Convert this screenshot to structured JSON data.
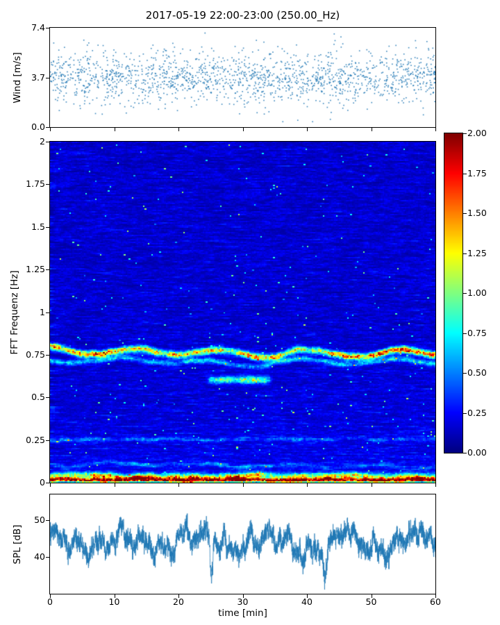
{
  "title": "2017-05-19 22:00-23:00 (250.00_Hz)",
  "seed": 20170519,
  "colors": {
    "series": "#1f77b4",
    "spine": "#000000",
    "background": "#ffffff"
  },
  "axes": {
    "time": {
      "label": "time [min]",
      "range": [
        0,
        60
      ],
      "ticks": [
        {
          "v": 0,
          "label": "0"
        },
        {
          "v": 10,
          "label": "10"
        },
        {
          "v": 20,
          "label": "20"
        },
        {
          "v": 30,
          "label": "30"
        },
        {
          "v": 40,
          "label": "40"
        },
        {
          "v": 50,
          "label": "50"
        },
        {
          "v": 60,
          "label": "60"
        }
      ]
    },
    "wind": {
      "label": "Wind [m/s]",
      "ylim": [
        0,
        7.4
      ],
      "yticks": [
        {
          "v": 0,
          "label": "0.0"
        },
        {
          "v": 3.7,
          "label": "3.7"
        },
        {
          "v": 7.4,
          "label": "7.4"
        }
      ]
    },
    "fft": {
      "label": "FFT Frequenz [Hz]",
      "ylim": [
        0,
        2
      ],
      "yticks": [
        {
          "v": 0,
          "label": "0"
        },
        {
          "v": 0.25,
          "label": "0.25"
        },
        {
          "v": 0.5,
          "label": "0.5"
        },
        {
          "v": 0.75,
          "label": "0.75"
        },
        {
          "v": 1,
          "label": "1"
        },
        {
          "v": 1.25,
          "label": "1.25"
        },
        {
          "v": 1.5,
          "label": "1.5"
        },
        {
          "v": 1.75,
          "label": "1.75"
        },
        {
          "v": 2,
          "label": "2"
        }
      ]
    },
    "spl": {
      "label": "SPL [dB]",
      "ylim": [
        30,
        57
      ],
      "yticks": [
        {
          "v": 40,
          "label": "40"
        },
        {
          "v": 50,
          "label": "50"
        }
      ]
    },
    "colorbar": {
      "range": [
        0,
        2
      ],
      "ticks": [
        {
          "v": 0,
          "label": "0.00"
        },
        {
          "v": 0.25,
          "label": "0.25"
        },
        {
          "v": 0.5,
          "label": "0.50"
        },
        {
          "v": 0.75,
          "label": "0.75"
        },
        {
          "v": 1,
          "label": "1.00"
        },
        {
          "v": 1.25,
          "label": "1.25"
        },
        {
          "v": 1.5,
          "label": "1.50"
        },
        {
          "v": 1.75,
          "label": "1.75"
        },
        {
          "v": 2,
          "label": "2.00"
        }
      ]
    }
  },
  "chart_data": [
    {
      "type": "scatter",
      "name": "wind",
      "ylabel": "Wind [m/s]",
      "x_range": [
        0,
        60
      ],
      "ylim": [
        0,
        7.4
      ],
      "n_points": 1700,
      "mean": 3.7,
      "std": 0.95,
      "min": 0.4,
      "max": 7.35,
      "marker_color": "#1f77b4",
      "description": "dense noisy wind-speed scatter centered near 3.7 m/s, spanning roughly 0.5-7.3 m/s over 0-60 min"
    },
    {
      "type": "heatmap",
      "name": "spectrogram",
      "ylabel": "FFT Frequenz [Hz]",
      "x_range": [
        0,
        60
      ],
      "y_range": [
        0,
        2
      ],
      "value_range": [
        0,
        2
      ],
      "colormap": "jet",
      "background_level": 0.15,
      "bands": [
        {
          "center": 0.78,
          "wobble": 0.03,
          "amp": 1.25,
          "amp_var": 0.55,
          "sigma": 0.013,
          "description": "dominant narrowband tone, green-yellow with red bursts, wanders 0.75-0.83 Hz"
        },
        {
          "center": 0.71,
          "wobble": 0.02,
          "amp": 0.45,
          "amp_var": 0.25,
          "sigma": 0.011,
          "description": "weaker secondary tone just below main band"
        },
        {
          "center": 0.6,
          "t_start": 24,
          "t_end": 35,
          "amp": 0.7,
          "amp_var": 0.25,
          "sigma": 0.015,
          "description": "cyan patch near 25-35 min around 0.6 Hz"
        },
        {
          "center": 0.25,
          "wobble": 0.006,
          "amp": 0.28,
          "amp_var": 0.22,
          "sigma": 0.008,
          "description": "faint intermittent horizontal line at 0.25 Hz"
        },
        {
          "center": 0.1,
          "wobble": 0.01,
          "amp": 0.22,
          "amp_var": 0.2,
          "sigma": 0.008,
          "description": "faint line near 0.1 Hz"
        },
        {
          "center": 0.035,
          "wobble": 0.004,
          "amp": 0.9,
          "amp_var": 0.45,
          "sigma": 0.012,
          "description": "strong orange-yellow band just above 0 Hz"
        },
        {
          "center": 0.012,
          "wobble": 0.002,
          "amp": 1.8,
          "amp_var": 0.3,
          "sigma": 0.009,
          "description": "saturated dark-red band along bottom edge"
        }
      ]
    },
    {
      "type": "line",
      "name": "spl",
      "ylabel": "SPL [dB]",
      "x_range": [
        0,
        60
      ],
      "ylim": [
        30,
        57
      ],
      "mean": 44,
      "slow_amp": 3.5,
      "fast_amp": 3.0,
      "n_points": 4200,
      "min": 33,
      "max": 55,
      "color": "#1f77b4",
      "description": "dense rapidly fluctuating SPL trace around 40-50 dB with occasional dips to ~33 dB"
    }
  ]
}
